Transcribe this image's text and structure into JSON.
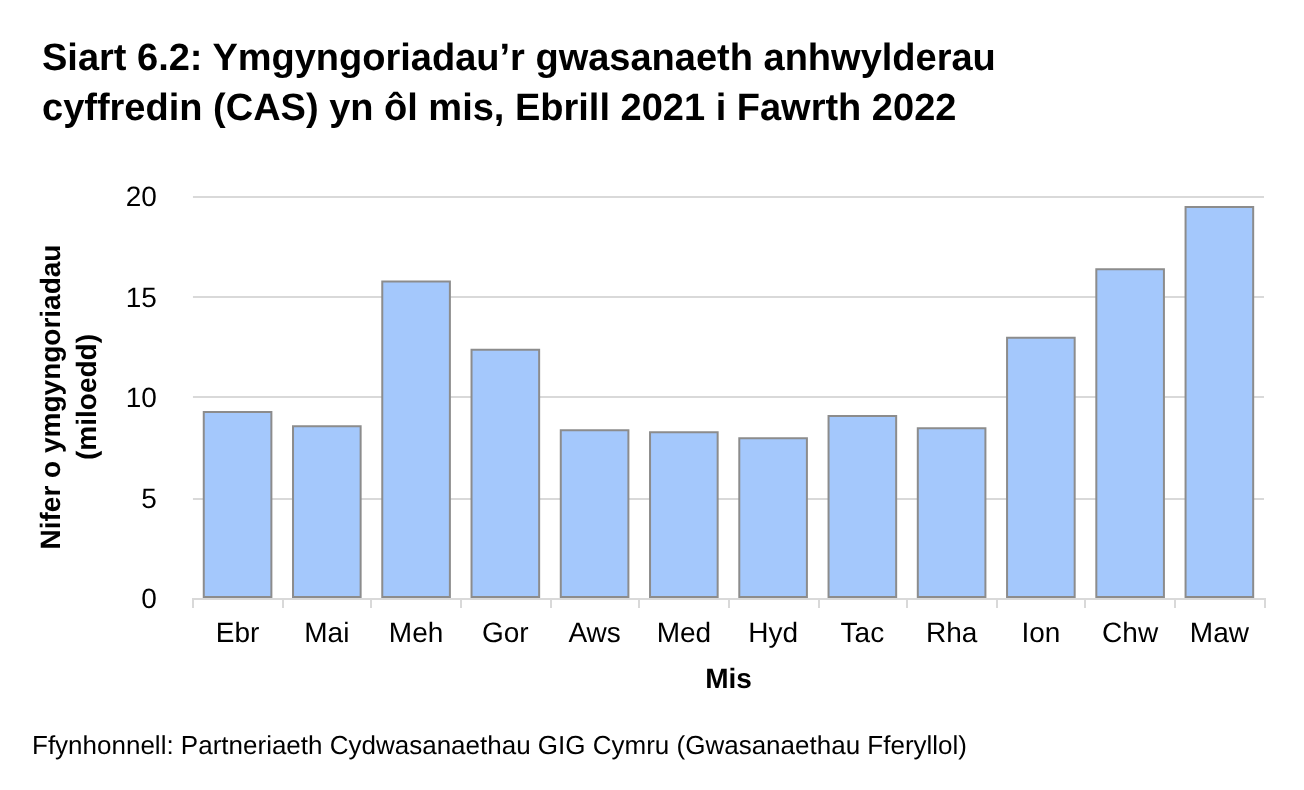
{
  "chart_data": {
    "type": "bar",
    "title": "Siart 6.2: Ymgyngoriadau’r gwasanaeth anhwylderau\ncyffredin (CAS) yn ôl mis, Ebrill 2021 i Fawrth 2022",
    "xlabel": "Mis",
    "ylabel": "Nifer o ymgyngoriadau\n(miloedd)",
    "categories": [
      "Ebr",
      "Mai",
      "Meh",
      "Gor",
      "Aws",
      "Med",
      "Hyd",
      "Tac",
      "Rha",
      "Ion",
      "Chw",
      "Maw"
    ],
    "values": [
      9.3,
      8.6,
      15.8,
      12.4,
      8.4,
      8.3,
      8.0,
      9.1,
      8.5,
      13.0,
      16.4,
      19.5
    ],
    "color": "#a4c8fc",
    "ylim": [
      0,
      20
    ],
    "yticks": [
      0,
      5,
      10,
      15,
      20
    ],
    "grid": "y",
    "annotations": [
      "Ffynhonnell: Partneriaeth Cydwasanaethau GIG Cymru (Gwasanaethau Fferyllol)"
    ]
  }
}
